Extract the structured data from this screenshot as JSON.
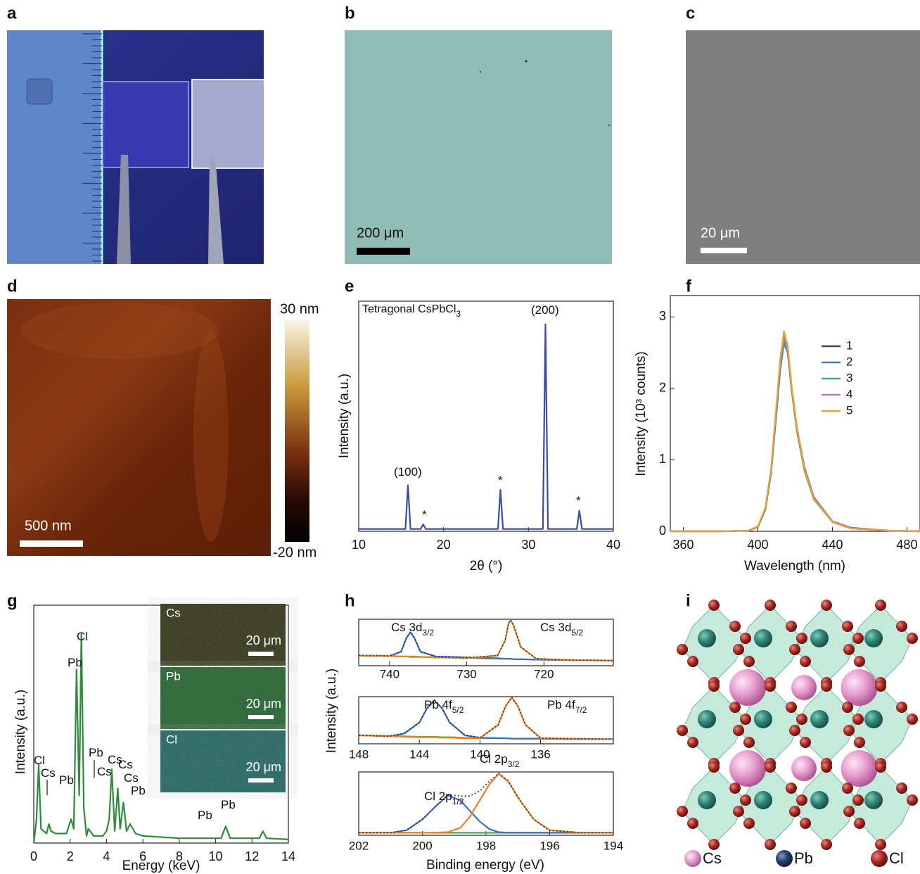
{
  "panel_labels": [
    "a",
    "b",
    "c",
    "d",
    "e",
    "f",
    "g",
    "h",
    "i"
  ],
  "images": {
    "b": {
      "scale_bar": "200 μm"
    },
    "c": {
      "scale_bar": "20 μm"
    },
    "d": {
      "scale_bar": "500 nm",
      "colorbar_top": "30 nm",
      "colorbar_bottom": "-20 nm"
    }
  },
  "chart_data": [
    {
      "type": "line",
      "x_label": "2θ (°)",
      "y_label": "Intensity (a.u.)",
      "xlim": [
        10,
        40
      ],
      "xticks": [
        10,
        20,
        30,
        40
      ],
      "ylim": [
        0,
        100
      ],
      "annotations": [
        {
          "text": "Tetragonal CsPbCl",
          "sub": "3"
        },
        {
          "text": "(100)"
        },
        {
          "text": "(200)"
        },
        {
          "text": "*"
        },
        {
          "text": "*"
        },
        {
          "text": "*"
        }
      ],
      "x": [
        10,
        15.5,
        15.8,
        16.1,
        17.3,
        17.6,
        17.9,
        26.4,
        26.7,
        27.0,
        31.7,
        32.0,
        32.3,
        35.7,
        36.0,
        36.3,
        40
      ],
      "series": [
        {
          "color": "#3b4da0",
          "values": [
            1,
            1,
            20,
            1,
            1,
            3,
            1,
            1,
            18,
            1,
            1,
            90,
            1,
            1,
            9,
            1,
            1
          ]
        }
      ]
    },
    {
      "type": "line",
      "x_label": "Wavelength (nm)",
      "y_label": "Intensity (10³ counts)",
      "xlim": [
        353,
        487
      ],
      "xticks": [
        360,
        400,
        440,
        480
      ],
      "ylim": [
        0,
        3.3
      ],
      "yticks": [
        0,
        1,
        2,
        3
      ],
      "legend": "upper right",
      "x": [
        353,
        380,
        395,
        400,
        404,
        407,
        410,
        412,
        414,
        416,
        418,
        421,
        425,
        430,
        440,
        450,
        470,
        487
      ],
      "series": [
        {
          "name": "1",
          "color": "#444444",
          "values": [
            0,
            0,
            0.01,
            0.06,
            0.3,
            0.8,
            1.7,
            2.3,
            2.68,
            2.5,
            2.0,
            1.4,
            0.85,
            0.45,
            0.13,
            0.04,
            0.01,
            0
          ]
        },
        {
          "name": "2",
          "color": "#4a78c2",
          "values": [
            0,
            0,
            0.01,
            0.06,
            0.3,
            0.8,
            1.65,
            2.25,
            2.63,
            2.5,
            2.05,
            1.45,
            0.9,
            0.48,
            0.14,
            0.05,
            0.01,
            0
          ]
        },
        {
          "name": "3",
          "color": "#3cb371",
          "values": [
            0,
            0,
            0.01,
            0.07,
            0.31,
            0.82,
            1.72,
            2.32,
            2.7,
            2.52,
            2.02,
            1.42,
            0.86,
            0.46,
            0.13,
            0.04,
            0.01,
            0
          ]
        },
        {
          "name": "4",
          "color": "#b07cc6",
          "values": [
            0,
            0,
            0.01,
            0.07,
            0.32,
            0.84,
            1.75,
            2.38,
            2.76,
            2.56,
            2.04,
            1.43,
            0.87,
            0.46,
            0.13,
            0.04,
            0.01,
            0
          ]
        },
        {
          "name": "5",
          "color": "#f0a030",
          "values": [
            0,
            0,
            0.01,
            0.07,
            0.33,
            0.86,
            1.78,
            2.42,
            2.8,
            2.6,
            2.06,
            1.44,
            0.87,
            0.46,
            0.13,
            0.04,
            0.01,
            0
          ]
        }
      ]
    },
    {
      "type": "line",
      "x_label": "Energy (keV)",
      "y_label": "Intensity (a.u.)",
      "xlim": [
        0,
        14
      ],
      "xticks": [
        0,
        2,
        4,
        6,
        8,
        10,
        12,
        14
      ],
      "ylim": [
        0,
        100
      ],
      "annotations": [
        {
          "text": "Cl"
        },
        {
          "text": "Cs"
        },
        {
          "text": "Pb"
        },
        {
          "text": "Pb"
        },
        {
          "text": "Cl"
        },
        {
          "text": "Pb"
        },
        {
          "text": "Cs"
        },
        {
          "text": "Cs"
        },
        {
          "text": "Cs"
        },
        {
          "text": "Cs"
        },
        {
          "text": "Pb"
        },
        {
          "text": "Pb"
        },
        {
          "text": "Pb"
        }
      ],
      "x": [
        0,
        0.15,
        0.27,
        0.4,
        0.7,
        0.83,
        0.95,
        1.2,
        1.8,
        2.05,
        2.2,
        2.35,
        2.5,
        2.62,
        2.75,
        2.9,
        3.0,
        3.3,
        3.6,
        3.8,
        4.0,
        4.15,
        4.29,
        4.45,
        4.62,
        4.75,
        4.93,
        5.1,
        5.3,
        5.6,
        6,
        8,
        10.3,
        10.55,
        10.8,
        12.4,
        12.6,
        12.8,
        14
      ],
      "series": [
        {
          "color": "#2e8b3e",
          "values": [
            0,
            10,
            33,
            6,
            4,
            8,
            5,
            4,
            4,
            10,
            6,
            73,
            20,
            88,
            15,
            3,
            6,
            3,
            3,
            3,
            5,
            10,
            31,
            5,
            23,
            6,
            17,
            5,
            8,
            4,
            3,
            2,
            2,
            7,
            2,
            2,
            5,
            2,
            1.5
          ]
        }
      ]
    },
    {
      "type": "line",
      "xlim": [
        744,
        711
      ],
      "xticks": [
        740,
        730,
        720
      ],
      "ylim": [
        0,
        100
      ],
      "annotations": [
        {
          "text": "Cs 3d",
          "sub": "3/2"
        },
        {
          "text": "Cs 3d",
          "sub": "5/2"
        }
      ],
      "x": [
        744,
        740,
        738.5,
        737.8,
        737.3,
        736.8,
        736,
        734,
        730,
        726,
        725,
        724.6,
        724.3,
        723.9,
        723,
        721,
        716,
        711
      ],
      "series": [
        {
          "color": "#4caf50",
          "values": [
            22,
            21,
            20,
            20,
            19,
            19,
            19,
            18,
            17,
            15,
            15,
            15,
            15,
            14,
            14,
            13,
            12,
            11
          ]
        },
        {
          "color": "#3a6fc4",
          "values": [
            22,
            21,
            30,
            60,
            72,
            60,
            30,
            20,
            18,
            16,
            15,
            15,
            15,
            14,
            14,
            13,
            12,
            11
          ]
        },
        {
          "color": "#f07f22",
          "values": [
            22,
            21,
            20,
            20,
            20,
            20,
            19,
            18,
            16,
            22,
            55,
            90,
            98,
            85,
            40,
            15,
            12,
            11
          ]
        },
        {
          "color": "#333333",
          "style": "dotted",
          "values": [
            22,
            21,
            31,
            61,
            73,
            61,
            31,
            19,
            17,
            22,
            55,
            91,
            99,
            86,
            41,
            15,
            12,
            11
          ]
        }
      ]
    },
    {
      "type": "line",
      "y_label": "Intensity (a.u.)",
      "xlim": [
        148,
        131.2
      ],
      "xticks": [
        148,
        144,
        140,
        136
      ],
      "ylim": [
        0,
        100
      ],
      "annotations": [
        {
          "text": "Pb 4f",
          "sub": "5/2"
        },
        {
          "text": "Pb 4f",
          "sub": "7/2"
        }
      ],
      "x": [
        148,
        146,
        145,
        144,
        143.5,
        143,
        142.5,
        142,
        141,
        140,
        138.8,
        138.3,
        137.9,
        137.5,
        137,
        136,
        134,
        131.2
      ],
      "series": [
        {
          "color": "#4caf50",
          "values": [
            18,
            17,
            16,
            15,
            15,
            15,
            14,
            14,
            13,
            12,
            12,
            12,
            11,
            11,
            11,
            11,
            10,
            10
          ]
        },
        {
          "color": "#3a6fc4",
          "values": [
            18,
            16,
            22,
            45,
            75,
            92,
            75,
            45,
            18,
            13,
            12,
            12,
            11,
            11,
            11,
            11,
            10,
            10
          ]
        },
        {
          "color": "#f07f22",
          "values": [
            18,
            16,
            15,
            14,
            14,
            14,
            13,
            13,
            12,
            12,
            40,
            80,
            98,
            80,
            40,
            12,
            11,
            10
          ]
        },
        {
          "color": "#333333",
          "style": "dotted",
          "values": [
            18,
            16,
            22,
            45,
            76,
            93,
            76,
            46,
            19,
            13,
            40,
            81,
            99,
            81,
            41,
            12,
            11,
            10
          ]
        }
      ]
    },
    {
      "type": "line",
      "x_label": "Binding energy (eV)",
      "xlim": [
        202,
        194
      ],
      "xticks": [
        202,
        200,
        198,
        196,
        194
      ],
      "ylim": [
        0,
        100
      ],
      "annotations": [
        {
          "text": "Cl 2p",
          "sub": "1/2"
        },
        {
          "text": "Cl 2p",
          "sub": "3/2"
        }
      ],
      "x": [
        202,
        201,
        200.5,
        200,
        199.6,
        199.2,
        198.8,
        198.5,
        198.2,
        197.9,
        197.6,
        197.3,
        197,
        196.5,
        196,
        195,
        194
      ],
      "series": [
        {
          "color": "#4caf50",
          "values": [
            4,
            4,
            4,
            4,
            4,
            4,
            4,
            4,
            4,
            4,
            4,
            4,
            4,
            4,
            4,
            4,
            4
          ]
        },
        {
          "color": "#3a6fc4",
          "values": [
            4,
            4,
            8,
            25,
            45,
            63,
            55,
            38,
            22,
            10,
            5,
            4,
            4,
            4,
            4,
            4,
            4
          ]
        },
        {
          "color": "#f07f22",
          "values": [
            4,
            4,
            4,
            4,
            4,
            5,
            12,
            30,
            55,
            80,
            97,
            85,
            60,
            25,
            8,
            4,
            4
          ]
        },
        {
          "color": "#333333",
          "style": "dotted",
          "values": [
            4,
            4,
            8,
            25,
            45,
            64,
            62,
            62,
            70,
            85,
            98,
            86,
            60,
            25,
            8,
            4,
            4
          ]
        }
      ]
    }
  ],
  "eds_maps": [
    {
      "element": "Cs",
      "scale_bar": "20 μm",
      "color": "#3d3f22"
    },
    {
      "element": "Pb",
      "scale_bar": "20 μm",
      "color": "#2f6b3a"
    },
    {
      "element": "Cl",
      "scale_bar": "20 μm",
      "color": "#2f6d6a"
    }
  ],
  "structure": {
    "legend": [
      "Cs",
      "Pb",
      "Cl"
    ]
  }
}
